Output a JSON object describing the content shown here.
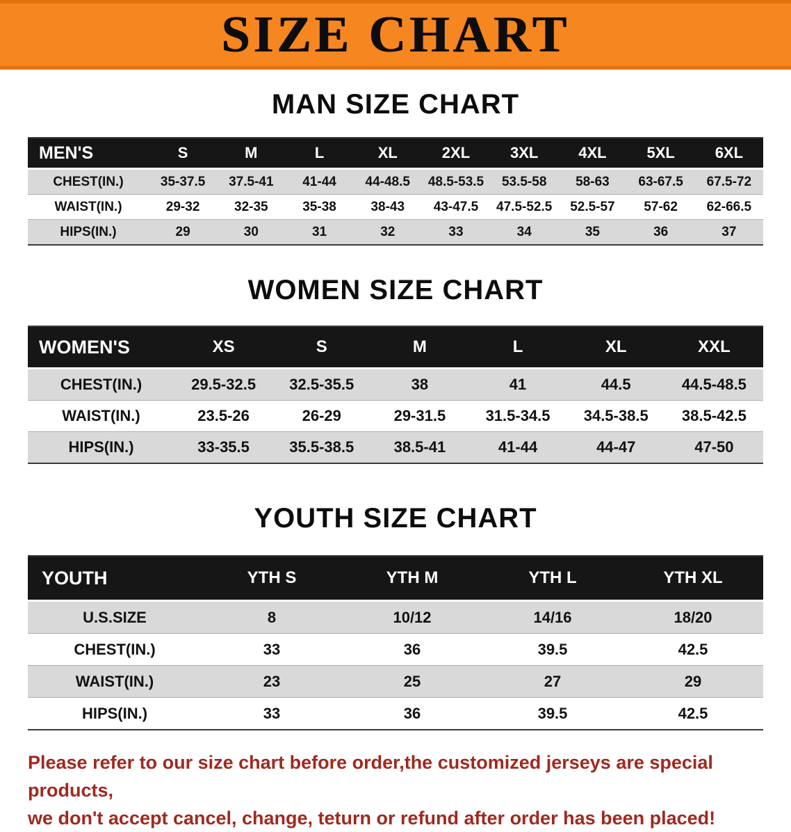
{
  "banner": {
    "title": "SIZE CHART"
  },
  "sections": {
    "men": {
      "heading": "MAN SIZE CHART",
      "header": [
        "MEN'S",
        "S",
        "M",
        "L",
        "XL",
        "2XL",
        "3XL",
        "4XL",
        "5XL",
        "6XL"
      ],
      "rows": [
        [
          "CHEST(IN.)",
          "35-37.5",
          "37.5-41",
          "41-44",
          "44-48.5",
          "48.5-53.5",
          "53.5-58",
          "58-63",
          "63-67.5",
          "67.5-72"
        ],
        [
          "WAIST(IN.)",
          "29-32",
          "32-35",
          "35-38",
          "38-43",
          "43-47.5",
          "47.5-52.5",
          "52.5-57",
          "57-62",
          "62-66.5"
        ],
        [
          "HIPS(IN.)",
          "29",
          "30",
          "31",
          "32",
          "33",
          "34",
          "35",
          "36",
          "37"
        ]
      ]
    },
    "women": {
      "heading": "WOMEN SIZE CHART",
      "header": [
        "WOMEN'S",
        "XS",
        "S",
        "M",
        "L",
        "XL",
        "XXL"
      ],
      "rows": [
        [
          "CHEST(IN.)",
          "29.5-32.5",
          "32.5-35.5",
          "38",
          "41",
          "44.5",
          "44.5-48.5"
        ],
        [
          "WAIST(IN.)",
          "23.5-26",
          "26-29",
          "29-31.5",
          "31.5-34.5",
          "34.5-38.5",
          "38.5-42.5"
        ],
        [
          "HIPS(IN.)",
          "33-35.5",
          "35.5-38.5",
          "38.5-41",
          "41-44",
          "44-47",
          "47-50"
        ]
      ]
    },
    "youth": {
      "heading": "YOUTH SIZE CHART",
      "header": [
        "YOUTH",
        "YTH S",
        "YTH M",
        "YTH L",
        "YTH XL"
      ],
      "rows": [
        [
          "U.S.SIZE",
          "8",
          "10/12",
          "14/16",
          "18/20"
        ],
        [
          "CHEST(IN.)",
          "33",
          "36",
          "39.5",
          "42.5"
        ],
        [
          "WAIST(IN.)",
          "23",
          "25",
          "27",
          "29"
        ],
        [
          "HIPS(IN.)",
          "33",
          "36",
          "39.5",
          "42.5"
        ]
      ]
    }
  },
  "disclaimer": {
    "line1": "Please refer to our size chart before order,the customized jerseys are special products,",
    "line2": "we don't accept cancel, change, teturn or refund after order has been placed!"
  }
}
